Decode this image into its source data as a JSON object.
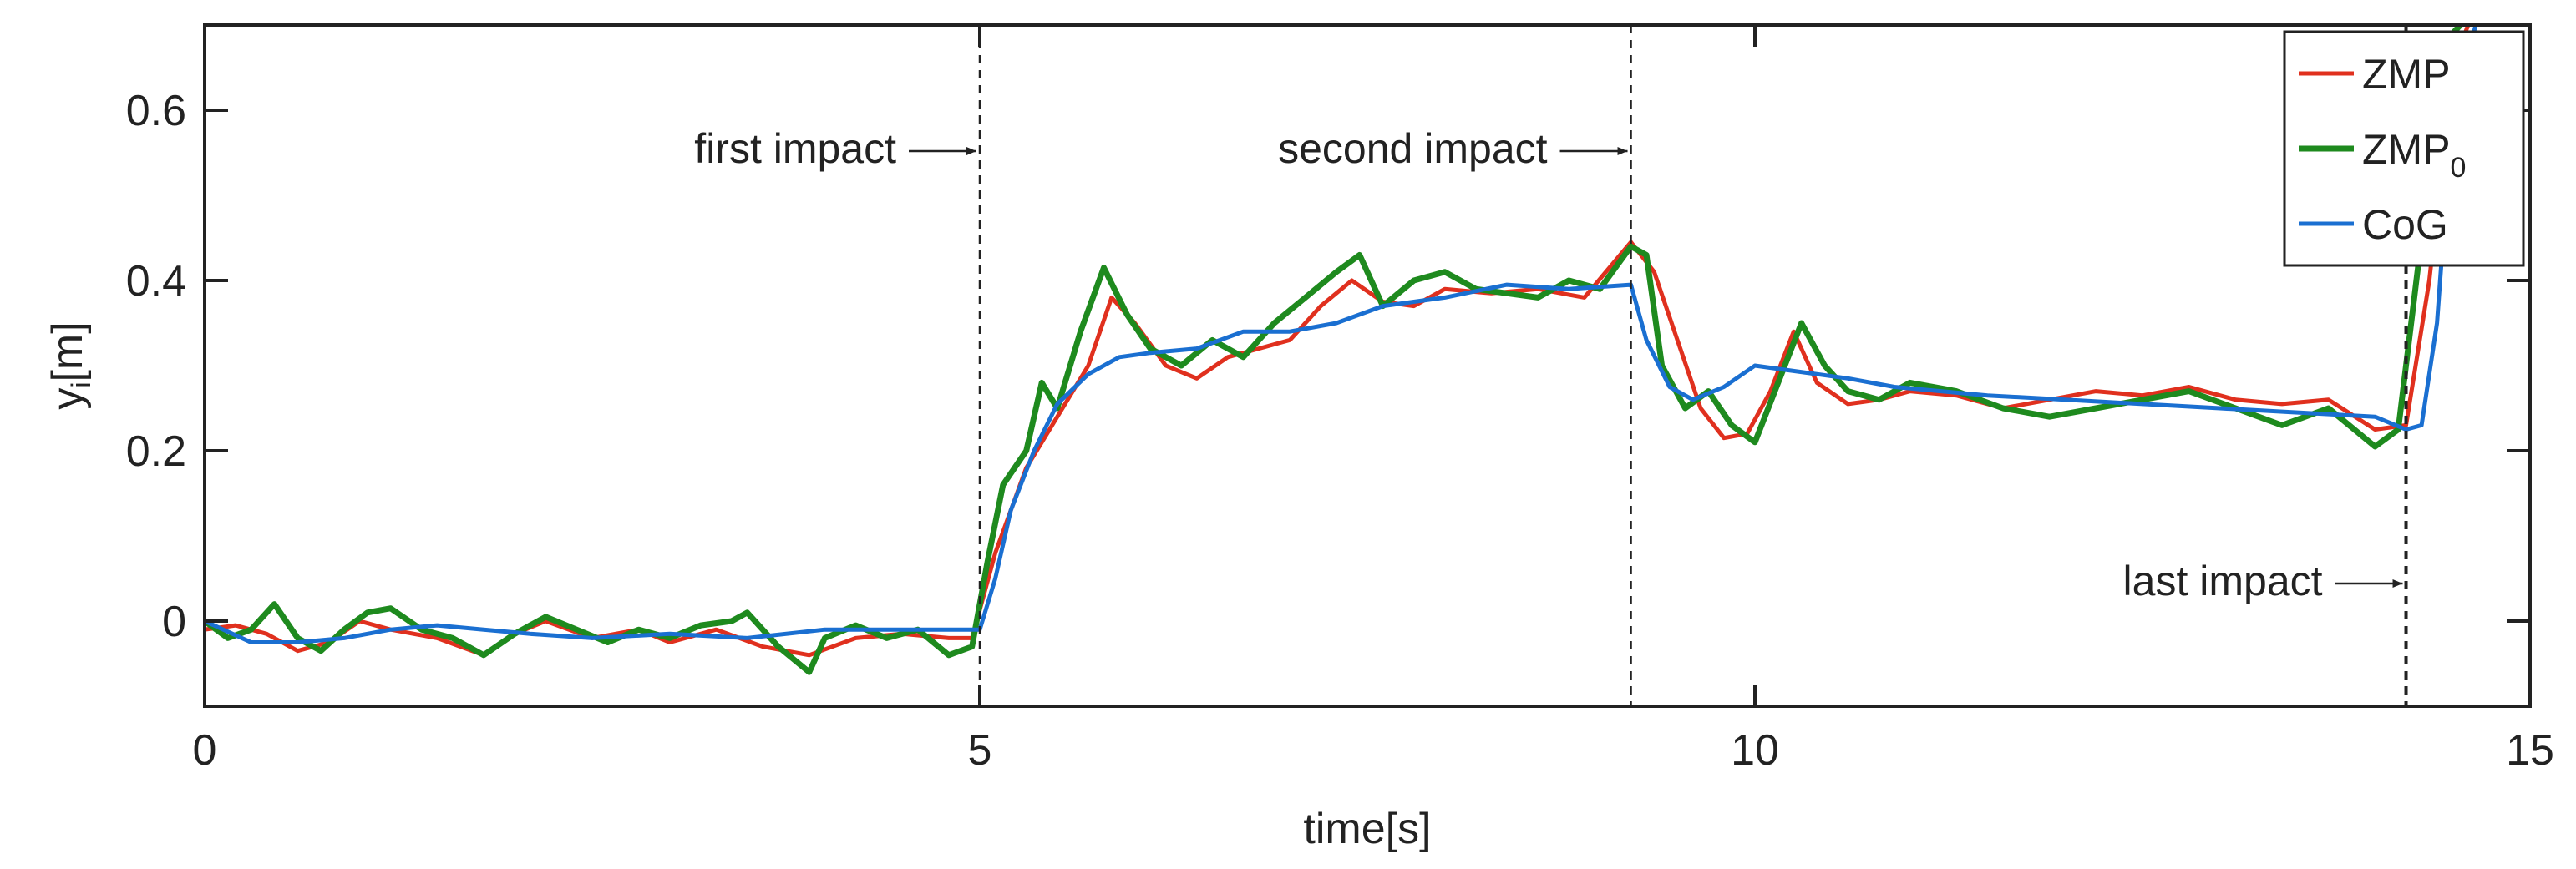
{
  "chart_data": {
    "type": "line",
    "xlabel": "time[s]",
    "ylabel": "y",
    "ylabel_sub": "i",
    "ylabel_unit": "[m]",
    "xlim": [
      0,
      15
    ],
    "ylim": [
      -0.1,
      0.7
    ],
    "xticks": [
      0,
      5,
      10,
      15
    ],
    "yticks": [
      0,
      0.2,
      0.4,
      0.6
    ],
    "xtick_labels": [
      "0",
      "5",
      "10",
      "15"
    ],
    "ytick_labels": [
      "0",
      "0.2",
      "0.4",
      "0.6"
    ],
    "grid": false,
    "legend_position": "top-right",
    "series": [
      {
        "name": "ZMP",
        "color": "#e0301e",
        "x": [
          0,
          0.2,
          0.4,
          0.6,
          0.8,
          1.0,
          1.2,
          1.5,
          1.8,
          2.0,
          2.2,
          2.5,
          2.8,
          3.0,
          3.3,
          3.6,
          3.9,
          4.2,
          4.5,
          4.8,
          4.95,
          5.1,
          5.3,
          5.5,
          5.7,
          5.85,
          6.0,
          6.2,
          6.4,
          6.6,
          6.8,
          7.0,
          7.2,
          7.4,
          7.6,
          7.8,
          8.0,
          8.3,
          8.6,
          8.9,
          9.2,
          9.35,
          9.5,
          9.65,
          9.8,
          9.95,
          10.1,
          10.25,
          10.4,
          10.6,
          10.8,
          11.0,
          11.3,
          11.6,
          11.9,
          12.2,
          12.5,
          12.8,
          13.1,
          13.4,
          13.7,
          14.0,
          14.2,
          14.35,
          14.5,
          14.6
        ],
        "y": [
          -0.01,
          -0.005,
          -0.015,
          -0.035,
          -0.025,
          0.0,
          -0.01,
          -0.02,
          -0.04,
          -0.015,
          0.0,
          -0.02,
          -0.01,
          -0.025,
          -0.01,
          -0.03,
          -0.04,
          -0.02,
          -0.015,
          -0.02,
          -0.02,
          0.08,
          0.18,
          0.24,
          0.3,
          0.38,
          0.35,
          0.3,
          0.285,
          0.31,
          0.32,
          0.33,
          0.37,
          0.4,
          0.375,
          0.37,
          0.39,
          0.385,
          0.39,
          0.38,
          0.445,
          0.41,
          0.33,
          0.25,
          0.215,
          0.22,
          0.27,
          0.34,
          0.28,
          0.255,
          0.26,
          0.27,
          0.265,
          0.25,
          0.26,
          0.27,
          0.265,
          0.275,
          0.26,
          0.255,
          0.26,
          0.225,
          0.23,
          0.4,
          0.65,
          0.7
        ]
      },
      {
        "name": "ZMP",
        "name_sub": "0",
        "color": "#1e8a1e",
        "x": [
          0,
          0.15,
          0.3,
          0.45,
          0.6,
          0.75,
          0.9,
          1.05,
          1.2,
          1.4,
          1.6,
          1.8,
          2.0,
          2.2,
          2.4,
          2.6,
          2.8,
          3.0,
          3.2,
          3.4,
          3.5,
          3.7,
          3.9,
          4.0,
          4.2,
          4.4,
          4.6,
          4.8,
          4.95,
          5.05,
          5.15,
          5.3,
          5.4,
          5.5,
          5.65,
          5.8,
          5.95,
          6.1,
          6.3,
          6.5,
          6.7,
          6.9,
          7.1,
          7.3,
          7.45,
          7.6,
          7.8,
          8.0,
          8.2,
          8.4,
          8.6,
          8.8,
          9.0,
          9.2,
          9.3,
          9.4,
          9.55,
          9.7,
          9.85,
          10.0,
          10.15,
          10.3,
          10.45,
          10.6,
          10.8,
          11.0,
          11.3,
          11.6,
          11.9,
          12.2,
          12.5,
          12.8,
          13.1,
          13.4,
          13.7,
          14.0,
          14.15,
          14.3,
          14.45,
          14.55
        ],
        "y": [
          0.0,
          -0.02,
          -0.01,
          0.02,
          -0.02,
          -0.035,
          -0.01,
          0.01,
          0.015,
          -0.01,
          -0.02,
          -0.04,
          -0.015,
          0.005,
          -0.01,
          -0.025,
          -0.01,
          -0.02,
          -0.005,
          0.0,
          0.01,
          -0.03,
          -0.06,
          -0.02,
          -0.005,
          -0.02,
          -0.01,
          -0.04,
          -0.03,
          0.07,
          0.16,
          0.2,
          0.28,
          0.25,
          0.34,
          0.415,
          0.36,
          0.32,
          0.3,
          0.33,
          0.31,
          0.35,
          0.38,
          0.41,
          0.43,
          0.37,
          0.4,
          0.41,
          0.39,
          0.385,
          0.38,
          0.4,
          0.39,
          0.44,
          0.43,
          0.3,
          0.25,
          0.27,
          0.23,
          0.21,
          0.28,
          0.35,
          0.3,
          0.27,
          0.26,
          0.28,
          0.27,
          0.25,
          0.24,
          0.25,
          0.26,
          0.27,
          0.25,
          0.23,
          0.25,
          0.205,
          0.225,
          0.45,
          0.68,
          0.7
        ]
      },
      {
        "name": "CoG",
        "color": "#1a6fd1",
        "x": [
          0,
          0.3,
          0.6,
          0.9,
          1.2,
          1.5,
          1.8,
          2.1,
          2.5,
          3.0,
          3.5,
          4.0,
          4.5,
          4.9,
          5.0,
          5.1,
          5.2,
          5.35,
          5.5,
          5.7,
          5.9,
          6.1,
          6.4,
          6.7,
          7.0,
          7.3,
          7.6,
          8.0,
          8.4,
          8.8,
          9.2,
          9.3,
          9.45,
          9.6,
          9.8,
          10.0,
          10.2,
          10.4,
          10.6,
          10.9,
          11.2,
          11.5,
          12.0,
          12.5,
          13.0,
          13.5,
          14.0,
          14.2,
          14.3,
          14.4,
          14.5,
          14.65
        ],
        "y": [
          0.0,
          -0.025,
          -0.025,
          -0.02,
          -0.01,
          -0.005,
          -0.01,
          -0.015,
          -0.02,
          -0.015,
          -0.02,
          -0.01,
          -0.01,
          -0.01,
          -0.01,
          0.05,
          0.13,
          0.2,
          0.255,
          0.29,
          0.31,
          0.315,
          0.32,
          0.34,
          0.34,
          0.35,
          0.37,
          0.38,
          0.395,
          0.39,
          0.395,
          0.33,
          0.275,
          0.26,
          0.275,
          0.3,
          0.295,
          0.29,
          0.285,
          0.275,
          0.27,
          0.265,
          0.26,
          0.255,
          0.25,
          0.245,
          0.24,
          0.225,
          0.23,
          0.35,
          0.6,
          0.7
        ]
      }
    ],
    "vlines": [
      {
        "x": 5.0,
        "label": "first impact",
        "label_side": "left"
      },
      {
        "x": 9.2,
        "label": "second impact",
        "label_side": "left"
      },
      {
        "x": 14.2,
        "label": "last impact",
        "label_side": "left"
      }
    ]
  }
}
